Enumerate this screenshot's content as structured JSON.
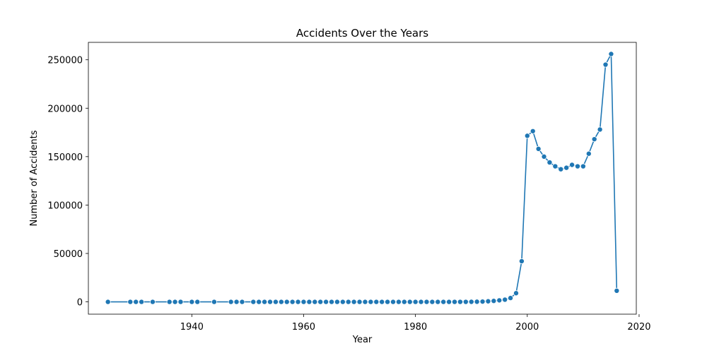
{
  "chart_data": {
    "type": "line",
    "title": "Accidents Over the Years",
    "xlabel": "Year",
    "ylabel": "Number of Accidents",
    "xlim": [
      1921.5,
      2019.5
    ],
    "ylim": [
      -12700,
      268000
    ],
    "xticks": [
      1940,
      1960,
      1980,
      2000,
      2020
    ],
    "yticks": [
      0,
      50000,
      100000,
      150000,
      200000,
      250000
    ],
    "grid": false,
    "legend": "none",
    "colors": {
      "series": "#1f77b4"
    },
    "x": [
      1925,
      1929,
      1930,
      1931,
      1933,
      1936,
      1937,
      1938,
      1940,
      1941,
      1944,
      1947,
      1948,
      1949,
      1951,
      1952,
      1953,
      1954,
      1955,
      1956,
      1957,
      1958,
      1959,
      1960,
      1961,
      1962,
      1963,
      1964,
      1965,
      1966,
      1967,
      1968,
      1969,
      1970,
      1971,
      1972,
      1973,
      1974,
      1975,
      1976,
      1977,
      1978,
      1979,
      1980,
      1981,
      1982,
      1983,
      1984,
      1985,
      1986,
      1987,
      1988,
      1989,
      1990,
      1991,
      1992,
      1993,
      1994,
      1995,
      1996,
      1997,
      1998,
      1999,
      2000,
      2001,
      2002,
      2003,
      2004,
      2005,
      2006,
      2007,
      2008,
      2009,
      2010,
      2011,
      2012,
      2013,
      2014,
      2015,
      2016
    ],
    "series": [
      {
        "values": [
          1,
          1,
          1,
          1,
          1,
          1,
          1,
          1,
          1,
          1,
          1,
          1,
          1,
          1,
          1,
          1,
          1,
          1,
          1,
          1,
          1,
          1,
          1,
          1,
          1,
          1,
          1,
          1,
          1,
          1,
          1,
          1,
          1,
          1,
          1,
          1,
          1,
          1,
          1,
          1,
          1,
          1,
          1,
          1,
          1,
          2,
          2,
          2,
          2,
          3,
          5,
          10,
          20,
          50,
          150,
          300,
          600,
          1000,
          1600,
          2300,
          4000,
          9000,
          42000,
          171500,
          176300,
          158000,
          150000,
          144000,
          140000,
          137000,
          138500,
          141500,
          140000,
          140000,
          153000,
          168000,
          178000,
          245000,
          256000,
          11500
        ]
      }
    ]
  }
}
